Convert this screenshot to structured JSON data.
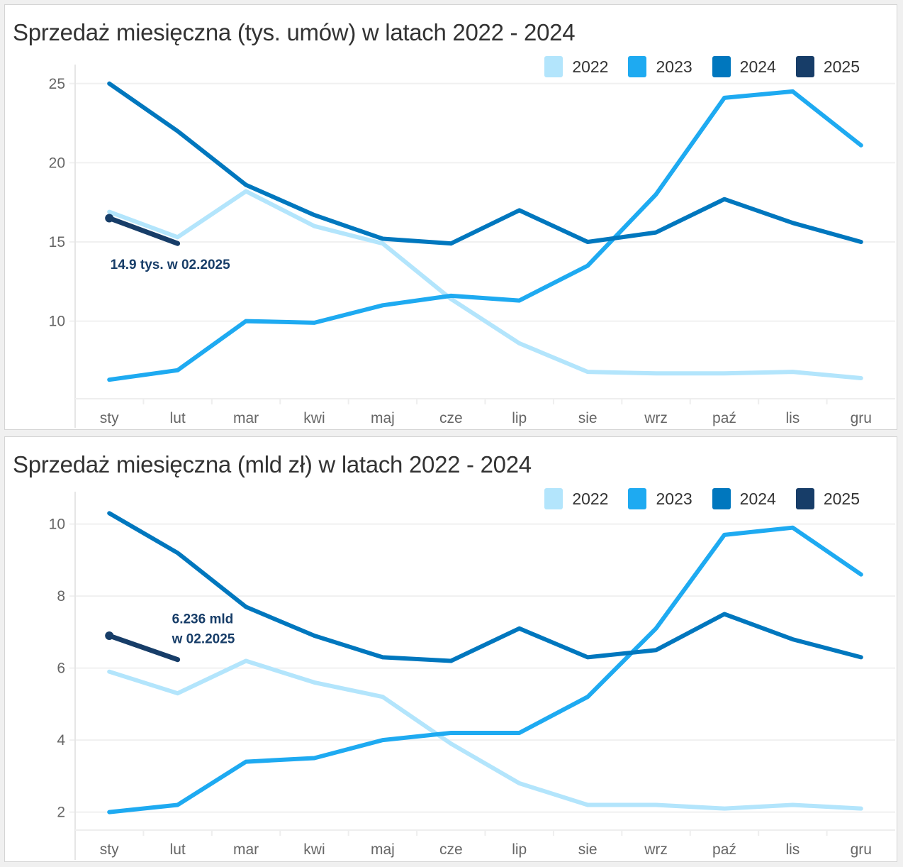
{
  "months": [
    "sty",
    "lut",
    "mar",
    "kwi",
    "maj",
    "cze",
    "lip",
    "sie",
    "wrz",
    "paź",
    "lis",
    "gru"
  ],
  "legend": [
    {
      "label": "2022",
      "color": "#b3e5fc"
    },
    {
      "label": "2023",
      "color": "#1eaaf1"
    },
    {
      "label": "2024",
      "color": "#0077be"
    },
    {
      "label": "2025",
      "color": "#173d68"
    }
  ],
  "chart_data": [
    {
      "type": "line",
      "title": "Sprzedaż miesięczna (tys. umów) w latach 2022 - 2024",
      "xlabel": "",
      "ylabel": "",
      "categories": [
        "sty",
        "lut",
        "mar",
        "kwi",
        "maj",
        "cze",
        "lip",
        "sie",
        "wrz",
        "paź",
        "lis",
        "gru"
      ],
      "yticks": [
        10,
        15,
        20,
        25
      ],
      "ylim": [
        5.1,
        26.2
      ],
      "grid": true,
      "legend_position": "top-right",
      "series": [
        {
          "name": "2022",
          "color": "#b3e5fc",
          "values": [
            16.9,
            15.3,
            18.2,
            16.0,
            14.9,
            11.4,
            8.6,
            6.8,
            6.7,
            6.7,
            6.8,
            6.4
          ]
        },
        {
          "name": "2023",
          "color": "#1eaaf1",
          "values": [
            6.3,
            6.9,
            10.0,
            9.9,
            11.0,
            11.6,
            11.3,
            13.5,
            18.0,
            24.1,
            24.5,
            21.1
          ]
        },
        {
          "name": "2024",
          "color": "#0077be",
          "values": [
            25.0,
            22.0,
            18.6,
            16.7,
            15.2,
            14.9,
            17.0,
            15.0,
            15.6,
            17.7,
            16.2,
            15.0
          ]
        },
        {
          "name": "2025",
          "color": "#173d68",
          "values": [
            16.5,
            14.9
          ]
        }
      ],
      "annotations": [
        {
          "lines": [
            "14.9 tys. w 02.2025"
          ],
          "series": "2025",
          "month": "lut"
        }
      ]
    },
    {
      "type": "line",
      "title": "Sprzedaż miesięczna (mld zł) w latach 2022 - 2024",
      "xlabel": "",
      "ylabel": "",
      "categories": [
        "sty",
        "lut",
        "mar",
        "kwi",
        "maj",
        "cze",
        "lip",
        "sie",
        "wrz",
        "paź",
        "lis",
        "gru"
      ],
      "yticks": [
        2,
        4,
        6,
        8,
        10
      ],
      "ylim": [
        1.5,
        10.9
      ],
      "grid": true,
      "legend_position": "top-right",
      "series": [
        {
          "name": "2022",
          "color": "#b3e5fc",
          "values": [
            5.9,
            5.3,
            6.2,
            5.6,
            5.2,
            3.9,
            2.8,
            2.2,
            2.2,
            2.1,
            2.2,
            2.1
          ]
        },
        {
          "name": "2023",
          "color": "#1eaaf1",
          "values": [
            2.0,
            2.2,
            3.4,
            3.5,
            4.0,
            4.2,
            4.2,
            5.2,
            7.1,
            9.7,
            9.9,
            8.6
          ]
        },
        {
          "name": "2024",
          "color": "#0077be",
          "values": [
            10.3,
            9.2,
            7.7,
            6.9,
            6.3,
            6.2,
            7.1,
            6.3,
            6.5,
            7.5,
            6.8,
            6.3
          ]
        },
        {
          "name": "2025",
          "color": "#173d68",
          "values": [
            6.9,
            6.236
          ]
        }
      ],
      "annotations": [
        {
          "lines": [
            "6.236 mld",
            "w 02.2025"
          ],
          "series": "2025",
          "month": "lut"
        }
      ]
    }
  ]
}
